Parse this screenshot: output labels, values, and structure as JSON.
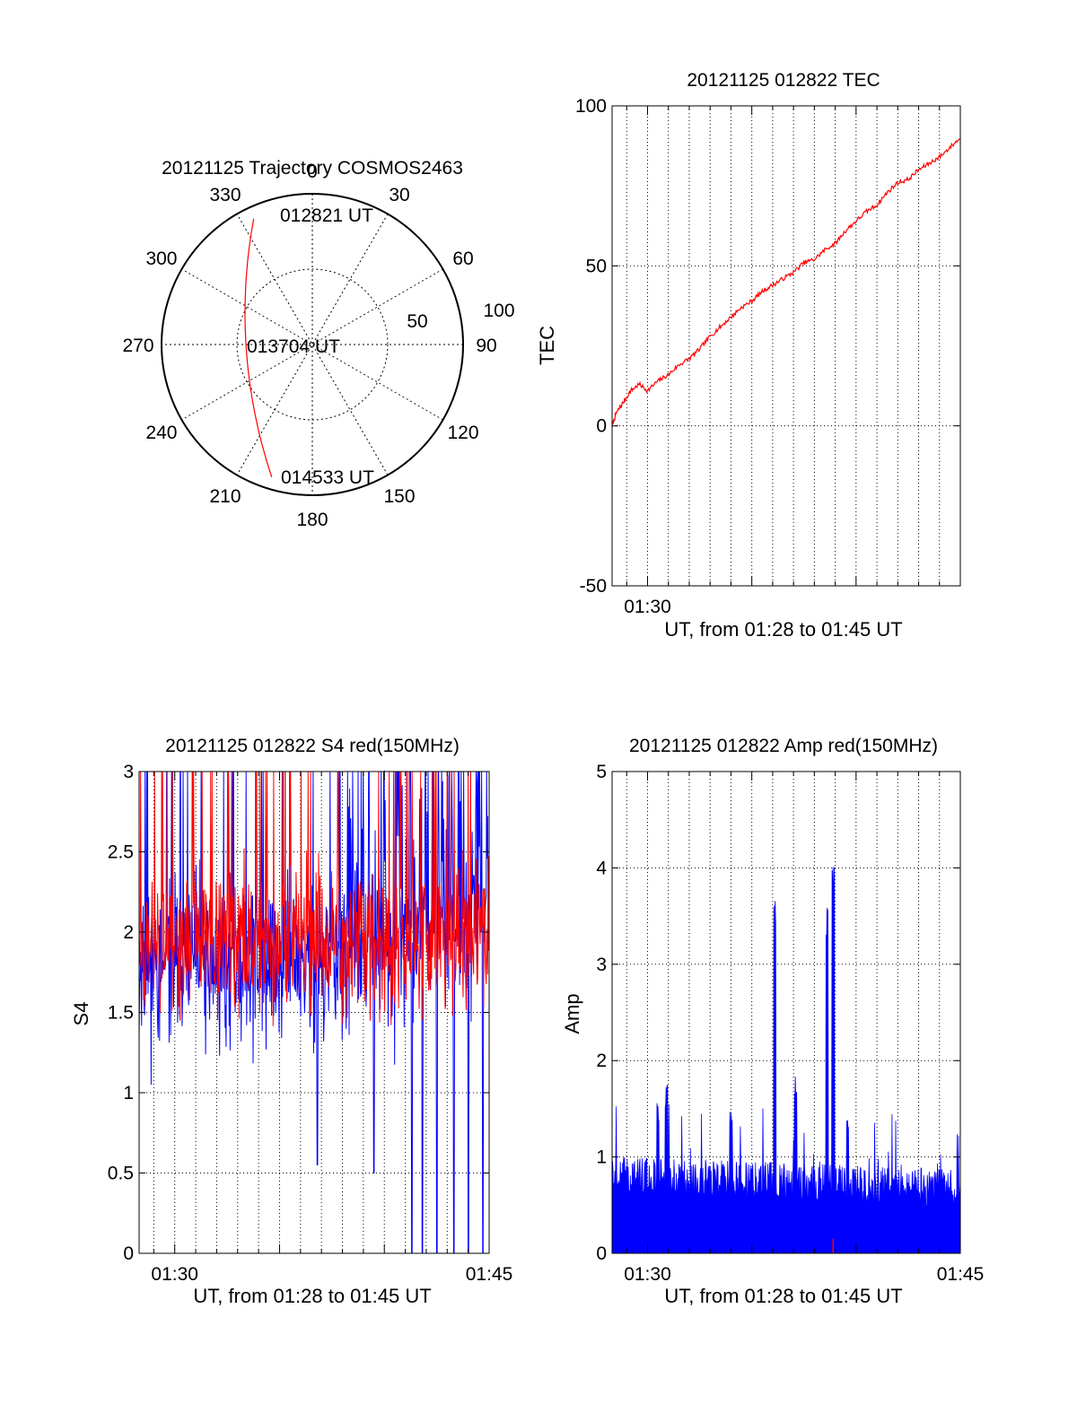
{
  "colors": {
    "red": "#ff0000",
    "blue": "#0000ff",
    "axis": "#000000",
    "background": "#ffffff"
  },
  "chart_data": [
    {
      "type": "polar",
      "title": "20121125 Trajectory COSMOS2463",
      "azimuth_labels": [
        "0",
        "30",
        "60",
        "90",
        "120",
        "150",
        "180",
        "210",
        "240",
        "270",
        "300",
        "330"
      ],
      "radial_ticks": [
        50,
        100
      ],
      "radial_max": 100,
      "grid": true,
      "track": {
        "color": "red",
        "start": {
          "azimuth": -25,
          "radius": 92
        },
        "end": {
          "azimuth": 197,
          "radius": 92
        },
        "closest_radius": 44
      },
      "point_labels": [
        "012821 UT",
        "013704 UT",
        "014533 UT"
      ]
    },
    {
      "type": "line",
      "title": "20121125 012822 TEC",
      "ylabel": "TEC",
      "xlabel": "UT, from 01:28 to 01:45 UT",
      "ylim": [
        -50,
        100
      ],
      "yticks": [
        "-50",
        "0",
        "50",
        "100"
      ],
      "xlim_minutes": [
        28.3,
        45.0
      ],
      "xtick_labels": [
        {
          "t": 30,
          "label": "01:30"
        }
      ],
      "grid": true,
      "series": [
        {
          "color": "red",
          "x": [
            28.3,
            28.5,
            28.8,
            29.2,
            29.6,
            30.0,
            30.5,
            31.0,
            31.5,
            32.0,
            32.5,
            33.0,
            33.5,
            34.0,
            34.5,
            35.0,
            35.5,
            36.0,
            36.5,
            37.0,
            37.5,
            38.0,
            38.5,
            39.0,
            39.5,
            40.0,
            40.5,
            41.0,
            41.5,
            42.0,
            42.5,
            43.0,
            43.5,
            44.0,
            44.5,
            45.0
          ],
          "y": [
            0,
            4,
            7,
            11,
            13,
            11,
            14,
            16,
            19,
            21,
            24,
            28,
            31,
            34,
            37,
            39,
            42,
            44,
            46,
            48,
            51,
            52,
            55,
            57,
            61,
            64,
            67,
            69,
            73,
            76,
            77,
            80,
            82,
            84,
            87,
            90
          ]
        }
      ]
    },
    {
      "type": "line",
      "title": "20121125 012822 S4 red(150MHz)",
      "ylabel": "S4",
      "xlabel": "UT, from 01:28 to 01:45 UT",
      "ylim": [
        0,
        3
      ],
      "yticks": [
        "0",
        "0.5",
        "1",
        "1.5",
        "2",
        "2.5",
        "3"
      ],
      "xlim_minutes": [
        28.3,
        45.0
      ],
      "xtick_labels": [
        {
          "t": 30,
          "label": "01:30"
        },
        {
          "t": 45,
          "label": "01:45"
        }
      ],
      "grid": true,
      "series": [
        {
          "color": "red",
          "mean": 1.95,
          "spread": 0.35,
          "min": 1.2,
          "max": 3.0,
          "spikes": []
        },
        {
          "color": "blue",
          "mean": 1.8,
          "spread": 0.4,
          "min": 1.05,
          "max": 3.0,
          "spikes": [
            {
              "t": 36.8,
              "v": 0.55
            },
            {
              "t": 39.5,
              "v": 0.5
            },
            {
              "t": 41.3,
              "v": 0.0
            },
            {
              "t": 41.8,
              "v": 0.0
            },
            {
              "t": 42.5,
              "v": 0.0
            },
            {
              "t": 43.3,
              "v": 0.0
            },
            {
              "t": 44.0,
              "v": 0.0
            },
            {
              "t": 44.7,
              "v": 0.0
            }
          ]
        }
      ]
    },
    {
      "type": "line",
      "title": "20121125 012822 Amp red(150MHz)",
      "ylabel": "Amp",
      "xlabel": "UT, from 01:28 to 01:45 UT",
      "ylim": [
        0,
        5
      ],
      "yticks": [
        "0",
        "1",
        "2",
        "3",
        "4",
        "5"
      ],
      "xlim_minutes": [
        28.3,
        45.0
      ],
      "xtick_labels": [
        {
          "t": 30,
          "label": "01:30"
        },
        {
          "t": 45,
          "label": "01:45"
        }
      ],
      "grid": true,
      "series": [
        {
          "color": "blue",
          "baseline": 0.7,
          "noise": 0.45,
          "peaks": [
            {
              "t": 30.5,
              "v": 1.6
            },
            {
              "t": 30.9,
              "v": 1.75
            },
            {
              "t": 34.0,
              "v": 1.5
            },
            {
              "t": 36.1,
              "v": 3.7
            },
            {
              "t": 37.1,
              "v": 1.85
            },
            {
              "t": 38.9,
              "v": 4.05
            },
            {
              "t": 38.6,
              "v": 3.6
            },
            {
              "t": 39.6,
              "v": 1.4
            }
          ]
        },
        {
          "color": "red",
          "peaks": [
            {
              "t": 38.9,
              "v": 0.15
            }
          ]
        }
      ]
    }
  ]
}
